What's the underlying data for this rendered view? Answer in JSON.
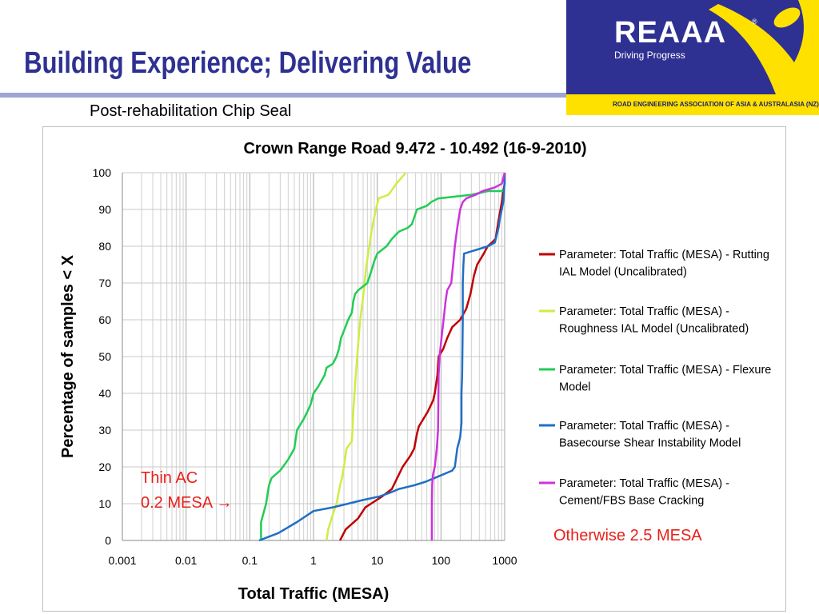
{
  "header": {
    "title": "Building Experience; Delivering Value",
    "subtitle": "Post-rehabilitation Chip Seal",
    "logo_text": "REAAA",
    "logo_reg": "®",
    "logo_tagline": "Driving Progress",
    "org_name": "ROAD ENGINEERING ASSOCIATION OF ASIA & AUSTRALASIA (NZ)"
  },
  "annotations": {
    "thin_ac_line1": "Thin AC",
    "thin_ac_line2": "0.2 MESA →",
    "otherwise": "Otherwise 2.5 MESA"
  },
  "colors": {
    "title": "#2e3192",
    "logo_bg": "#2e3192",
    "logo_accent": "#ffe100",
    "annotation": "#e8201a"
  },
  "chart_data": {
    "type": "line",
    "title": "Crown Range Road 9.472 - 10.492 (16-9-2010)",
    "xlabel": "Total Traffic (MESA)",
    "ylabel": "Percentage of samples < X",
    "x_scale": "log",
    "xlim": [
      0.001,
      1000
    ],
    "ylim": [
      0,
      100
    ],
    "x_ticks": [
      "0.001",
      "0.01",
      "0.1",
      "1",
      "10",
      "100",
      "1000"
    ],
    "y_ticks": [
      "0",
      "10",
      "20",
      "30",
      "40",
      "50",
      "60",
      "70",
      "80",
      "90",
      "100"
    ],
    "grid": true,
    "legend_position": "right",
    "series": [
      {
        "name": "Parameter: Total Traffic (MESA) - Rutting IAL Model (Uncalibrated)",
        "color": "#c00000",
        "points": [
          [
            2.6,
            0
          ],
          [
            3.2,
            3
          ],
          [
            5,
            6
          ],
          [
            6.5,
            9
          ],
          [
            8,
            10
          ],
          [
            12,
            12
          ],
          [
            17,
            14
          ],
          [
            25,
            20
          ],
          [
            33,
            23
          ],
          [
            38,
            25
          ],
          [
            42,
            29
          ],
          [
            45,
            31
          ],
          [
            62,
            35
          ],
          [
            75,
            38
          ],
          [
            80,
            40
          ],
          [
            88,
            45
          ],
          [
            92,
            50
          ],
          [
            108,
            52
          ],
          [
            125,
            55
          ],
          [
            150,
            58
          ],
          [
            200,
            60
          ],
          [
            250,
            63
          ],
          [
            290,
            67
          ],
          [
            330,
            72
          ],
          [
            370,
            75
          ],
          [
            470,
            78
          ],
          [
            540,
            80
          ],
          [
            630,
            81
          ],
          [
            720,
            82
          ],
          [
            800,
            87
          ],
          [
            900,
            92
          ],
          [
            950,
            95
          ],
          [
            1000,
            97
          ],
          [
            1000,
            100
          ]
        ]
      },
      {
        "name": "Parameter: Total Traffic (MESA) - Roughness IAL Model (Uncalibrated)",
        "color": "#ccee44",
        "points": [
          [
            1.6,
            0
          ],
          [
            1.7,
            3
          ],
          [
            2.0,
            7
          ],
          [
            2.3,
            10
          ],
          [
            2.6,
            15
          ],
          [
            2.8,
            17
          ],
          [
            3.0,
            20
          ],
          [
            3.3,
            25
          ],
          [
            4.0,
            27
          ],
          [
            4.2,
            35
          ],
          [
            4.6,
            45
          ],
          [
            5.0,
            53
          ],
          [
            5.4,
            60
          ],
          [
            5.9,
            65
          ],
          [
            6.3,
            70
          ],
          [
            6.8,
            75
          ],
          [
            7.5,
            80
          ],
          [
            8.3,
            85
          ],
          [
            9.5,
            90
          ],
          [
            10.5,
            93
          ],
          [
            15,
            94
          ],
          [
            20,
            97
          ],
          [
            28,
            100
          ]
        ]
      },
      {
        "name": "Parameter: Total Traffic (MESA) - Flexure Model",
        "color": "#22cc55",
        "points": [
          [
            0.15,
            0
          ],
          [
            0.15,
            5
          ],
          [
            0.18,
            10
          ],
          [
            0.2,
            15
          ],
          [
            0.22,
            17
          ],
          [
            0.3,
            19
          ],
          [
            0.4,
            22
          ],
          [
            0.5,
            25
          ],
          [
            0.55,
            30
          ],
          [
            0.7,
            33
          ],
          [
            0.8,
            35
          ],
          [
            0.9,
            37
          ],
          [
            1.0,
            40
          ],
          [
            1.2,
            42
          ],
          [
            1.5,
            45
          ],
          [
            1.6,
            47
          ],
          [
            2.0,
            48
          ],
          [
            2.3,
            50
          ],
          [
            2.5,
            52
          ],
          [
            2.7,
            55
          ],
          [
            3.0,
            57
          ],
          [
            3.5,
            60
          ],
          [
            4.0,
            62
          ],
          [
            4.2,
            65
          ],
          [
            4.5,
            67
          ],
          [
            5.0,
            68
          ],
          [
            7,
            70
          ],
          [
            8,
            73
          ],
          [
            9,
            76
          ],
          [
            10,
            78
          ],
          [
            14,
            80
          ],
          [
            17,
            82
          ],
          [
            22,
            84
          ],
          [
            30,
            85
          ],
          [
            35,
            86
          ],
          [
            42,
            90
          ],
          [
            60,
            91
          ],
          [
            70,
            92
          ],
          [
            90,
            93
          ],
          [
            300,
            94
          ],
          [
            550,
            95
          ],
          [
            1000,
            95
          ]
        ]
      },
      {
        "name": "Parameter: Total Traffic (MESA) - Basecourse Shear Instability Model",
        "color": "#1f6fc4",
        "points": [
          [
            0.14,
            0
          ],
          [
            0.28,
            2
          ],
          [
            0.55,
            5
          ],
          [
            1.0,
            8
          ],
          [
            2.0,
            9
          ],
          [
            3.5,
            10
          ],
          [
            6,
            11
          ],
          [
            11,
            12
          ],
          [
            16,
            13
          ],
          [
            22,
            14
          ],
          [
            38,
            15
          ],
          [
            58,
            16
          ],
          [
            80,
            17
          ],
          [
            110,
            18
          ],
          [
            150,
            19
          ],
          [
            165,
            20
          ],
          [
            180,
            25
          ],
          [
            200,
            28
          ],
          [
            205,
            30
          ],
          [
            210,
            32
          ],
          [
            210,
            40
          ],
          [
            215,
            45
          ],
          [
            220,
            60
          ],
          [
            220,
            70
          ],
          [
            225,
            75
          ],
          [
            230,
            78
          ],
          [
            550,
            80
          ],
          [
            700,
            81
          ],
          [
            800,
            85
          ],
          [
            850,
            88
          ],
          [
            900,
            90
          ],
          [
            950,
            92
          ],
          [
            980,
            95
          ],
          [
            990,
            97
          ],
          [
            1000,
            100
          ]
        ]
      },
      {
        "name": "Parameter: Total Traffic (MESA) - Cement/FBS Base Cracking",
        "color": "#cc33dd",
        "points": [
          [
            72,
            0
          ],
          [
            72,
            10
          ],
          [
            73,
            15
          ],
          [
            75,
            18
          ],
          [
            80,
            20
          ],
          [
            86,
            25
          ],
          [
            90,
            30
          ],
          [
            92,
            45
          ],
          [
            95,
            50
          ],
          [
            102,
            55
          ],
          [
            110,
            60
          ],
          [
            118,
            65
          ],
          [
            125,
            68
          ],
          [
            145,
            70
          ],
          [
            155,
            75
          ],
          [
            165,
            80
          ],
          [
            180,
            85
          ],
          [
            200,
            90
          ],
          [
            220,
            92
          ],
          [
            250,
            93
          ],
          [
            350,
            94
          ],
          [
            450,
            95
          ],
          [
            700,
            96
          ],
          [
            900,
            97
          ],
          [
            1000,
            100
          ]
        ]
      }
    ]
  }
}
